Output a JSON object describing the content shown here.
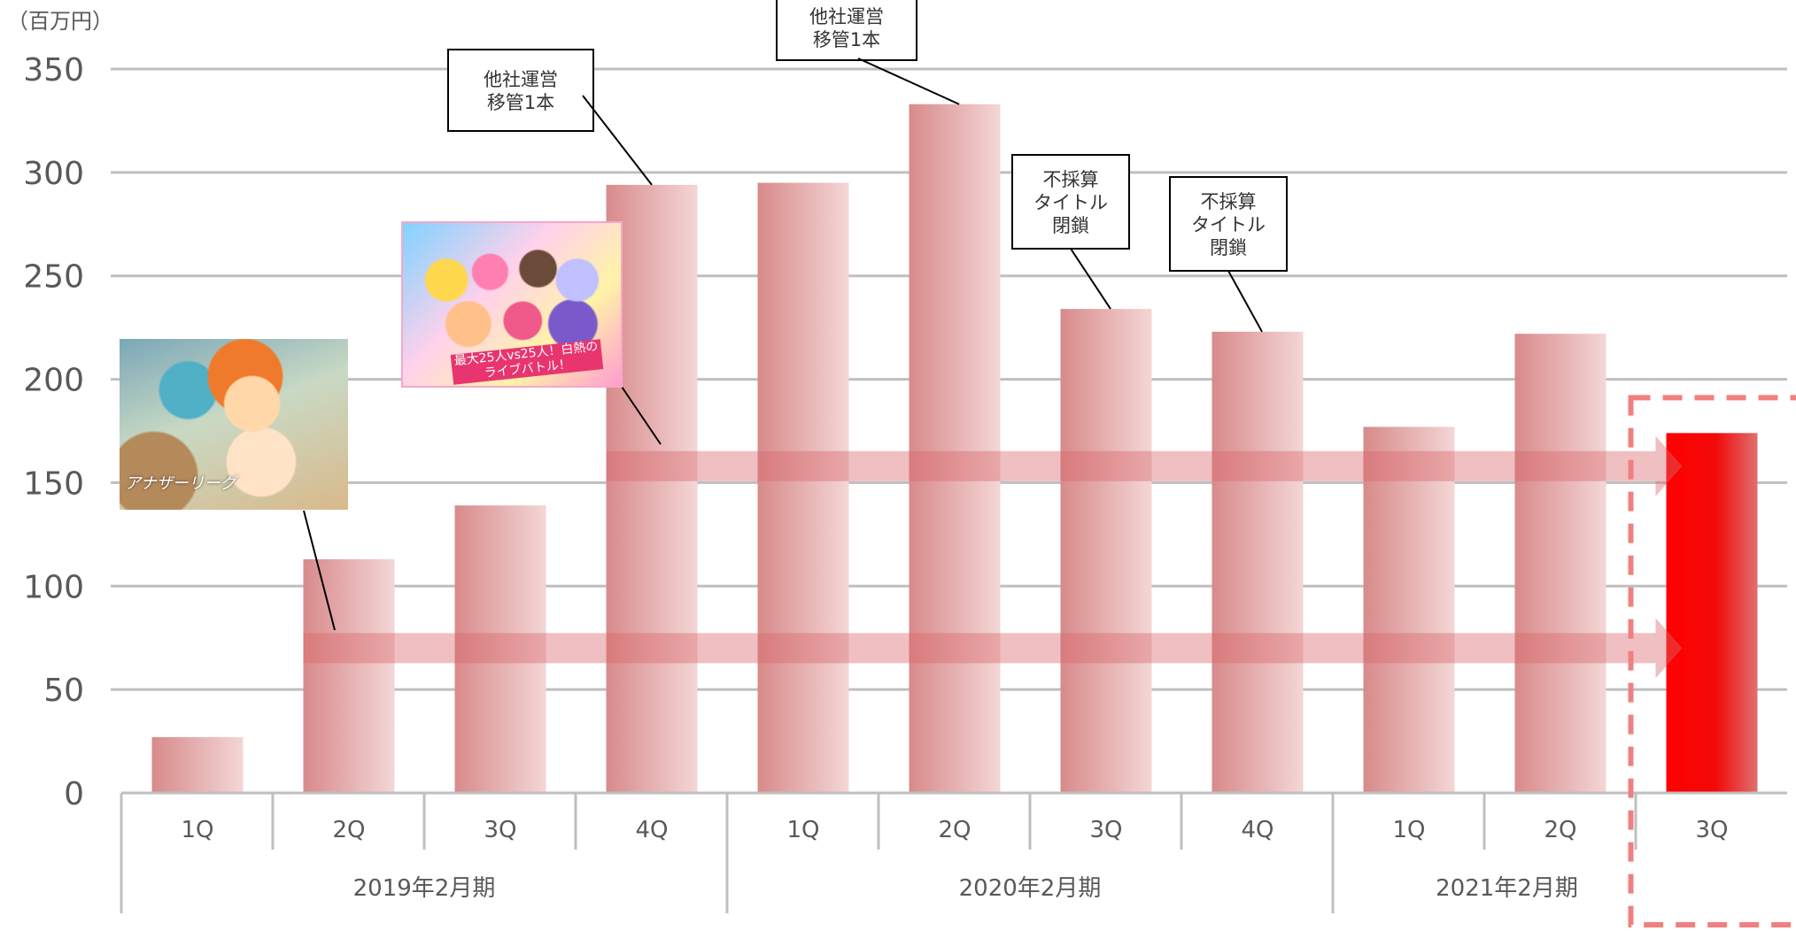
{
  "chart_data": {
    "type": "bar",
    "unit_label": "（百万円）",
    "ylim": [
      0,
      350
    ],
    "yticks": [
      0,
      50,
      100,
      150,
      200,
      250,
      300,
      350
    ],
    "categories": [
      "1Q",
      "2Q",
      "3Q",
      "4Q",
      "1Q",
      "2Q",
      "3Q",
      "4Q",
      "1Q",
      "2Q",
      "3Q"
    ],
    "groups": [
      {
        "label": "2019年2月期",
        "count": 4
      },
      {
        "label": "2020年2月期",
        "count": 4
      },
      {
        "label": "2021年2月期",
        "count": 3
      }
    ],
    "values": [
      27,
      113,
      139,
      294,
      295,
      333,
      234,
      223,
      177,
      222,
      174
    ],
    "highlight_index": 10,
    "colors": {
      "bar_dark": "#d88a8a",
      "bar_light": "#f4d6d6",
      "highlight": "#ff0000",
      "arrow": "#d9676b",
      "dash_box": "#f08080",
      "grid": "#bfbfbf"
    },
    "grid": true,
    "callouts": [
      {
        "lines": [
          "他社運営",
          "移管1本"
        ],
        "bar_index": 3
      },
      {
        "lines": [
          "他社運営",
          "移管1本"
        ],
        "bar_index": 5
      },
      {
        "lines": [
          "不採算",
          "タイトル",
          "閉鎖"
        ],
        "bar_index": 6
      },
      {
        "lines": [
          "不採算",
          "タイトル",
          "閉鎖"
        ],
        "bar_index": 7
      }
    ],
    "arrows": [
      {
        "start_index": 1,
        "level": 70
      },
      {
        "start_index": 3,
        "level": 158
      }
    ],
    "thumbnails": [
      {
        "caption": "アナザーリーグ",
        "banner": ""
      },
      {
        "caption": "",
        "banner": "最大25人vs25人！白熱のライブバトル！"
      }
    ]
  }
}
